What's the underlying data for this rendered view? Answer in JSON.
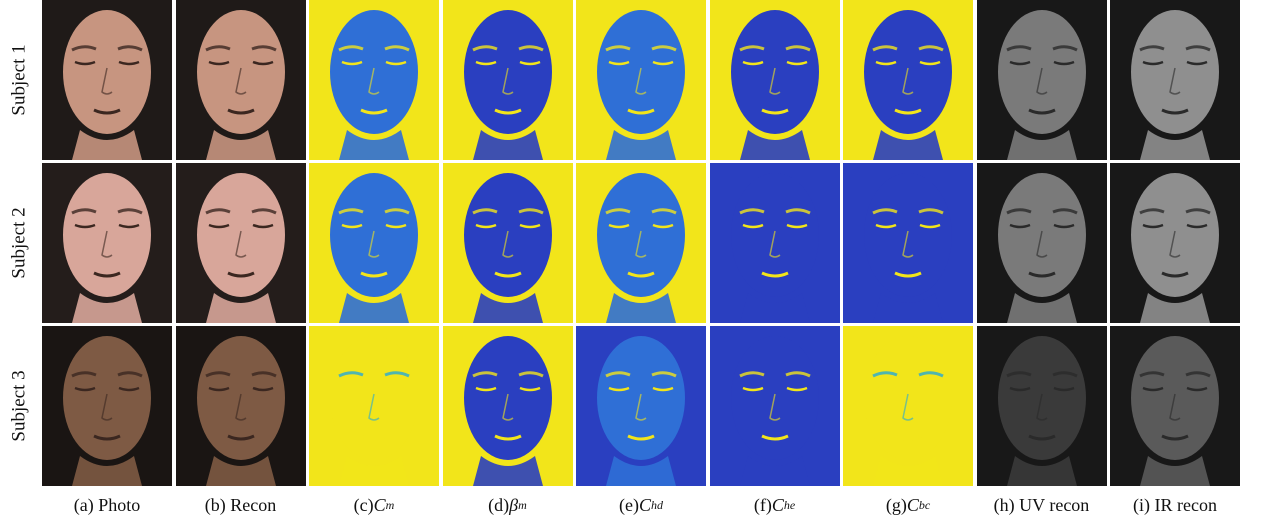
{
  "rows": [
    {
      "label": "Subject 1",
      "skin": "#c79580",
      "bg": "#1f1a18"
    },
    {
      "label": "Subject 2",
      "skin": "#d8a69a",
      "bg": "#241d1b"
    },
    {
      "label": "Subject 3",
      "skin": "#7e5a44",
      "bg": "#1a1513"
    }
  ],
  "columns": [
    {
      "prefix": "(a) Photo",
      "sym": "",
      "subscript": "",
      "kind": "photo",
      "icon": "face-photo"
    },
    {
      "prefix": "(b) Recon",
      "sym": "",
      "subscript": "",
      "kind": "photo",
      "icon": "face-photo"
    },
    {
      "prefix": "(c) ",
      "sym": "C",
      "subscript": "m",
      "kind": "map",
      "icon": "face-map"
    },
    {
      "prefix": "(d) ",
      "sym": "β",
      "subscript": "m",
      "kind": "map",
      "icon": "face-map"
    },
    {
      "prefix": "(e) ",
      "sym": "C",
      "subscript": "hd",
      "kind": "map",
      "icon": "face-map"
    },
    {
      "prefix": "(f) ",
      "sym": "C",
      "subscript": "he",
      "kind": "map",
      "icon": "face-map"
    },
    {
      "prefix": "(g) ",
      "sym": "C",
      "subscript": "bc",
      "kind": "map",
      "icon": "face-map"
    },
    {
      "prefix": "(h) UV recon",
      "sym": "",
      "subscript": "",
      "kind": "gray",
      "icon": "face-gray"
    },
    {
      "prefix": "(i) IR recon",
      "sym": "",
      "subscript": "",
      "kind": "gray",
      "icon": "face-gray"
    }
  ],
  "colors": {
    "map_yellow": "#f2e51a",
    "map_blue": "#2f6fd6",
    "map_deep": "#2a3fc0",
    "map_cyan": "#27a9d6",
    "gray_face": "#8c8c8c",
    "gray_bg": "#181818"
  },
  "map_styles": [
    [
      "yellow-bg-blue-face",
      "yellow-bg-dark-face",
      "yellow-bg-blue-face",
      "yellow-bg-deep-face",
      "yellow-bg-deep-face"
    ],
    [
      "yellow-bg-blue-face",
      "yellow-bg-dark-face",
      "yellow-bg-blue-face",
      "blue-bg-deep-face",
      "blue-bg-deep-face"
    ],
    [
      "yellow-bg-yellow-face",
      "yellow-bg-deep-face",
      "blue-bg-blue-face",
      "blue-bg-deep-face",
      "yellow-bg-yellow-face"
    ]
  ]
}
